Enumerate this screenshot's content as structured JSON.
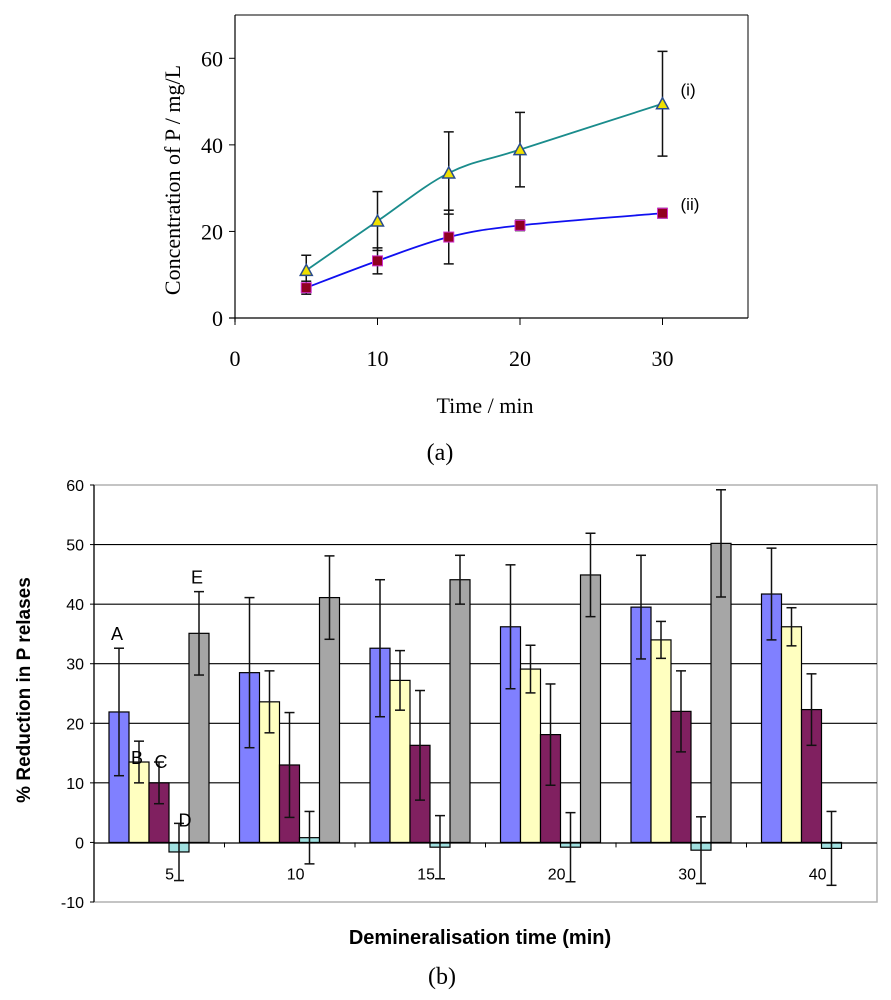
{
  "chart_data": [
    {
      "id": "a",
      "type": "line",
      "panel_label": "(a)",
      "xlabel": "Time / min",
      "ylabel": "Concentration of P / mg/L",
      "xlim": [
        0,
        36
      ],
      "ylim": [
        0,
        70
      ],
      "xticks": [
        0,
        10,
        20,
        30
      ],
      "yticks": [
        0,
        20,
        40,
        60
      ],
      "grid": false,
      "series": [
        {
          "name": "(i)",
          "color": "#1a8c8c",
          "marker": "triangle",
          "marker_color": "#f0e000",
          "x": [
            5,
            10,
            15,
            20,
            30
          ],
          "y": [
            11.0,
            22.4,
            33.5,
            38.9,
            49.5
          ],
          "err": [
            3.5,
            6.8,
            9.5,
            8.6,
            12.1
          ]
        },
        {
          "name": "(ii)",
          "color": "#1010f0",
          "marker": "square",
          "marker_color": "#900020",
          "x": [
            5,
            10,
            15,
            20,
            30
          ],
          "y": [
            7.0,
            13.2,
            18.7,
            21.4,
            24.2
          ],
          "err": [
            1.5,
            3.0,
            6.2,
            1.2,
            1.1
          ]
        }
      ]
    },
    {
      "id": "b",
      "type": "bar",
      "panel_label": "(b)",
      "xlabel": "Demineralisation time (min)",
      "ylabel": "% Reduction in P relases",
      "ylim": [
        -10,
        60
      ],
      "yticks": [
        -10,
        0,
        10,
        20,
        30,
        40,
        50,
        60
      ],
      "grid": true,
      "categories": [
        "5",
        "10",
        "15",
        "20",
        "30",
        "40"
      ],
      "series": [
        {
          "name": "A",
          "color": "#8080ff",
          "values": [
            21.9,
            28.5,
            32.6,
            36.2,
            39.5,
            41.7
          ],
          "err": [
            10.7,
            12.6,
            11.5,
            10.4,
            8.7,
            7.7
          ]
        },
        {
          "name": "B",
          "color": "#ffffc0",
          "values": [
            13.5,
            23.6,
            27.2,
            29.1,
            34.0,
            36.2
          ],
          "err": [
            3.5,
            5.2,
            5.0,
            4.0,
            3.1,
            3.2
          ]
        },
        {
          "name": "C",
          "color": "#802060",
          "values": [
            10.0,
            13.0,
            16.3,
            18.1,
            22.0,
            22.3
          ],
          "err": [
            3.5,
            8.8,
            9.2,
            8.5,
            6.8,
            6.0
          ]
        },
        {
          "name": "D",
          "color": "#a0e0e0",
          "values": [
            -1.6,
            0.8,
            -0.8,
            -0.8,
            -1.3,
            -1.0
          ],
          "err": [
            4.8,
            4.4,
            5.3,
            5.8,
            5.6,
            6.2
          ]
        },
        {
          "name": "E",
          "color": "#a6a6a6",
          "values": [
            35.1,
            41.1,
            44.1,
            44.9,
            50.2,
            null
          ],
          "err": [
            7.0,
            7.0,
            4.1,
            7.0,
            9.0,
            null
          ]
        }
      ],
      "annotations": [
        {
          "text": "A",
          "series": "A",
          "category": "5"
        },
        {
          "text": "B",
          "series": "B",
          "category": "5"
        },
        {
          "text": "C",
          "series": "C",
          "category": "5"
        },
        {
          "text": "D",
          "series": "D",
          "category": "5"
        },
        {
          "text": "E",
          "series": "E",
          "category": "5"
        }
      ]
    }
  ]
}
